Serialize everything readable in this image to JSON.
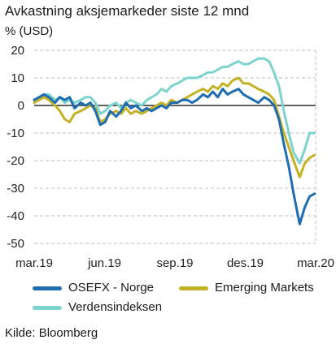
{
  "title": "Avkastning aksjemarkeder siste 12 mnd",
  "unit_label": "% (USD)",
  "source": "Kilde: Bloomberg",
  "colors": {
    "osefx": "#1f6db1",
    "em": "#c3b225",
    "world": "#7dd3cd",
    "grid": "#bdbdbd",
    "zero": "#000000"
  },
  "legend": [
    {
      "key": "osefx",
      "label": "OSEFX - Norge"
    },
    {
      "key": "em",
      "label": "Emerging Markets"
    },
    {
      "key": "world",
      "label": "Verdensindeksen"
    }
  ],
  "chart_data": {
    "type": "line",
    "title": "Avkastning aksjemarkeder siste 12 mnd",
    "ylabel": "% (USD)",
    "ylim": [
      -50,
      20
    ],
    "yticks": [
      20,
      10,
      0,
      -10,
      -20,
      -30,
      -40,
      -50
    ],
    "x_ticks": [
      "mar.19",
      "jun.19",
      "sep.19",
      "des.19",
      "mar.20"
    ],
    "grid": "horizontal dashed",
    "legend_position": "bottom",
    "series": [
      {
        "name": "OSEFX - Norge",
        "color_key": "osefx",
        "points": [
          [
            0.0,
            2
          ],
          [
            0.04,
            3
          ],
          [
            0.08,
            4
          ],
          [
            0.12,
            3
          ],
          [
            0.17,
            1
          ],
          [
            0.21,
            3
          ],
          [
            0.25,
            2
          ],
          [
            0.29,
            3
          ],
          [
            0.33,
            -1
          ],
          [
            0.38,
            1
          ],
          [
            0.42,
            0
          ],
          [
            0.46,
            1
          ],
          [
            0.5,
            -2
          ],
          [
            0.54,
            -7
          ],
          [
            0.58,
            -6
          ],
          [
            0.62,
            -2
          ],
          [
            0.67,
            -4
          ],
          [
            0.71,
            -2
          ],
          [
            0.75,
            1
          ],
          [
            0.79,
            -1
          ],
          [
            0.83,
            0
          ],
          [
            0.88,
            -2
          ],
          [
            0.92,
            -1
          ],
          [
            0.96,
            -2
          ],
          [
            1.0,
            -1
          ],
          [
            1.04,
            0
          ],
          [
            1.08,
            -1
          ],
          [
            1.12,
            1
          ],
          [
            1.17,
            1
          ],
          [
            1.21,
            2
          ],
          [
            1.25,
            2
          ],
          [
            1.29,
            1
          ],
          [
            1.33,
            2
          ],
          [
            1.38,
            4
          ],
          [
            1.42,
            3
          ],
          [
            1.46,
            5
          ],
          [
            1.5,
            3
          ],
          [
            1.54,
            6
          ],
          [
            1.58,
            4
          ],
          [
            1.62,
            5
          ],
          [
            1.67,
            6
          ],
          [
            1.71,
            4
          ],
          [
            1.75,
            3
          ],
          [
            1.79,
            2
          ],
          [
            1.83,
            1
          ],
          [
            1.88,
            3
          ],
          [
            1.92,
            2
          ],
          [
            1.96,
            0
          ],
          [
            2.0,
            -5
          ],
          [
            2.04,
            -14
          ],
          [
            2.08,
            -22
          ],
          [
            2.12,
            -32
          ],
          [
            2.17,
            -43
          ],
          [
            2.21,
            -37
          ],
          [
            2.25,
            -33
          ],
          [
            2.29,
            -32
          ]
        ]
      },
      {
        "name": "Emerging Markets",
        "color_key": "em",
        "points": [
          [
            0.0,
            1
          ],
          [
            0.04,
            2
          ],
          [
            0.08,
            3
          ],
          [
            0.12,
            2
          ],
          [
            0.17,
            0
          ],
          [
            0.21,
            -2
          ],
          [
            0.25,
            -5
          ],
          [
            0.29,
            -6
          ],
          [
            0.33,
            -3
          ],
          [
            0.38,
            -2
          ],
          [
            0.42,
            -1
          ],
          [
            0.46,
            0
          ],
          [
            0.5,
            -1
          ],
          [
            0.54,
            -6
          ],
          [
            0.58,
            -5
          ],
          [
            0.62,
            -3
          ],
          [
            0.67,
            -2
          ],
          [
            0.71,
            -3
          ],
          [
            0.75,
            -1
          ],
          [
            0.79,
            -3
          ],
          [
            0.83,
            -2
          ],
          [
            0.88,
            -3
          ],
          [
            0.92,
            -2
          ],
          [
            0.96,
            -1
          ],
          [
            1.0,
            0
          ],
          [
            1.04,
            1
          ],
          [
            1.08,
            0
          ],
          [
            1.12,
            2
          ],
          [
            1.17,
            1
          ],
          [
            1.21,
            2
          ],
          [
            1.25,
            3
          ],
          [
            1.29,
            4
          ],
          [
            1.33,
            5
          ],
          [
            1.38,
            6
          ],
          [
            1.42,
            5
          ],
          [
            1.46,
            7
          ],
          [
            1.5,
            6
          ],
          [
            1.54,
            8
          ],
          [
            1.58,
            7
          ],
          [
            1.62,
            9
          ],
          [
            1.67,
            10
          ],
          [
            1.71,
            8
          ],
          [
            1.75,
            8
          ],
          [
            1.79,
            7
          ],
          [
            1.83,
            6
          ],
          [
            1.88,
            5
          ],
          [
            1.92,
            4
          ],
          [
            1.96,
            2
          ],
          [
            2.0,
            -4
          ],
          [
            2.04,
            -10
          ],
          [
            2.08,
            -15
          ],
          [
            2.12,
            -20
          ],
          [
            2.17,
            -26
          ],
          [
            2.21,
            -21
          ],
          [
            2.25,
            -19
          ],
          [
            2.29,
            -18
          ]
        ]
      },
      {
        "name": "Verdensindeksen",
        "color_key": "world",
        "points": [
          [
            0.0,
            2
          ],
          [
            0.04,
            3
          ],
          [
            0.08,
            4
          ],
          [
            0.12,
            4
          ],
          [
            0.17,
            2
          ],
          [
            0.21,
            3
          ],
          [
            0.25,
            1
          ],
          [
            0.29,
            2
          ],
          [
            0.33,
            1
          ],
          [
            0.38,
            2
          ],
          [
            0.42,
            3
          ],
          [
            0.46,
            3
          ],
          [
            0.5,
            1
          ],
          [
            0.54,
            -3
          ],
          [
            0.58,
            -2
          ],
          [
            0.62,
            0
          ],
          [
            0.67,
            1
          ],
          [
            0.71,
            -1
          ],
          [
            0.75,
            1
          ],
          [
            0.79,
            2
          ],
          [
            0.83,
            1
          ],
          [
            0.88,
            0
          ],
          [
            0.92,
            2
          ],
          [
            0.96,
            3
          ],
          [
            1.0,
            4
          ],
          [
            1.04,
            6
          ],
          [
            1.08,
            5
          ],
          [
            1.12,
            7
          ],
          [
            1.17,
            8
          ],
          [
            1.21,
            9
          ],
          [
            1.25,
            10
          ],
          [
            1.29,
            10
          ],
          [
            1.33,
            10
          ],
          [
            1.38,
            11
          ],
          [
            1.42,
            12
          ],
          [
            1.46,
            12
          ],
          [
            1.5,
            13
          ],
          [
            1.54,
            14
          ],
          [
            1.58,
            14
          ],
          [
            1.62,
            15
          ],
          [
            1.67,
            16
          ],
          [
            1.71,
            15
          ],
          [
            1.75,
            15
          ],
          [
            1.79,
            16
          ],
          [
            1.83,
            17
          ],
          [
            1.88,
            17
          ],
          [
            1.92,
            16
          ],
          [
            1.96,
            12
          ],
          [
            2.0,
            7
          ],
          [
            2.04,
            -2
          ],
          [
            2.08,
            -10
          ],
          [
            2.12,
            -17
          ],
          [
            2.17,
            -21
          ],
          [
            2.21,
            -16
          ],
          [
            2.25,
            -10
          ],
          [
            2.29,
            -10
          ]
        ]
      }
    ]
  }
}
